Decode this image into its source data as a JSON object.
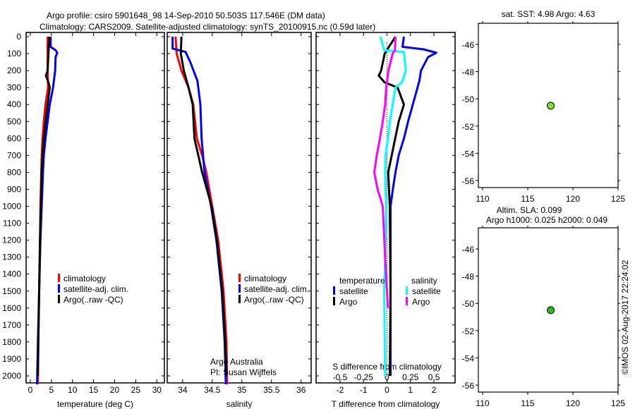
{
  "title": {
    "line1": "Argo profile: csiro 5901648_98 14-Sep-2010 50.503S 117.546E (DM data)",
    "line2": "Climatology: CARS2009. Satellite-adjusted climatology: synTS_20100915.nc (0.59d later)"
  },
  "depth_ticks": [
    0,
    100,
    200,
    300,
    400,
    500,
    600,
    700,
    800,
    900,
    1000,
    1100,
    1200,
    1300,
    1400,
    1500,
    1600,
    1700,
    1800,
    1900,
    2000
  ],
  "chart_data": [
    {
      "type": "line",
      "name": "temperature-profile",
      "xlabel": "temperature (deg C)",
      "ylabel": "depth",
      "xticks": [
        0,
        5,
        10,
        15,
        20,
        25,
        30
      ],
      "xlim": [
        -1,
        31.8
      ],
      "ylim": [
        2041,
        0
      ],
      "legend": [
        "climatology",
        "satellite-adj. clim.",
        "Argo(..raw -QC)"
      ],
      "series": [
        {
          "name": "climatology",
          "color": "#ff0000",
          "points": [
            [
              0,
              4.1
            ],
            [
              200,
              4.1
            ],
            [
              300,
              4.2
            ],
            [
              400,
              3.6
            ],
            [
              500,
              3.2
            ],
            [
              600,
              2.9
            ],
            [
              700,
              2.7
            ],
            [
              800,
              2.6
            ],
            [
              1000,
              2.4
            ],
            [
              1200,
              2.3
            ],
            [
              1500,
              2.1
            ],
            [
              1800,
              1.9
            ],
            [
              2050,
              1.8
            ]
          ]
        },
        {
          "name": "satellite-adj. clim.",
          "color": "#0000ff",
          "points": [
            [
              0,
              4.8
            ],
            [
              60,
              4.8
            ],
            [
              80,
              6.0
            ],
            [
              95,
              6.4
            ],
            [
              120,
              6.0
            ],
            [
              200,
              5.9
            ],
            [
              300,
              5.4
            ],
            [
              400,
              4.6
            ],
            [
              500,
              4.1
            ],
            [
              600,
              3.6
            ],
            [
              700,
              3.2
            ],
            [
              800,
              3.0
            ],
            [
              1000,
              2.7
            ],
            [
              1200,
              2.4
            ],
            [
              1500,
              2.1
            ],
            [
              1800,
              1.8
            ],
            [
              2050,
              1.6
            ]
          ]
        },
        {
          "name": "Argo(..raw -QC)",
          "color": "#000000",
          "points": [
            [
              0,
              4.5
            ],
            [
              100,
              4.3
            ],
            [
              200,
              4.1
            ],
            [
              230,
              3.7
            ],
            [
              270,
              4.3
            ],
            [
              300,
              4.6
            ],
            [
              400,
              4.1
            ],
            [
              500,
              3.6
            ],
            [
              600,
              3.2
            ],
            [
              700,
              2.9
            ],
            [
              800,
              2.7
            ],
            [
              1000,
              2.5
            ],
            [
              1200,
              2.3
            ],
            [
              1500,
              2.1
            ],
            [
              1800,
              1.9
            ],
            [
              2000,
              1.8
            ]
          ]
        }
      ]
    },
    {
      "type": "line",
      "name": "salinity-profile",
      "xlabel": "salinity",
      "ylabel": "depth",
      "xticks": [
        34,
        34.5,
        35,
        35.5,
        36
      ],
      "xtick_labels": [
        "34",
        "34.5",
        "35",
        "35.5",
        "36"
      ],
      "xlim": [
        33.74,
        36.17
      ],
      "ylim": [
        2041,
        0
      ],
      "legend": [
        "climatology",
        "satellite-adj. clim.",
        "Argo(..raw -QC)"
      ],
      "annotation": [
        "Argo Australia",
        "PI: Susan Wijffels"
      ],
      "series": [
        {
          "name": "climatology",
          "color": "#ff0000",
          "points": [
            [
              0,
              33.88
            ],
            [
              100,
              33.9
            ],
            [
              200,
              33.98
            ],
            [
              300,
              34.1
            ],
            [
              400,
              34.18
            ],
            [
              600,
              34.24
            ],
            [
              700,
              34.33
            ],
            [
              800,
              34.4
            ],
            [
              1000,
              34.5
            ],
            [
              1200,
              34.6
            ],
            [
              1500,
              34.69
            ],
            [
              1800,
              34.74
            ],
            [
              2050,
              34.75
            ]
          ]
        },
        {
          "name": "satellite-adj. clim.",
          "color": "#0000ff",
          "points": [
            [
              0,
              33.83
            ],
            [
              70,
              33.83
            ],
            [
              90,
              34.05
            ],
            [
              150,
              34.13
            ],
            [
              260,
              34.25
            ],
            [
              400,
              34.3
            ],
            [
              600,
              34.32
            ],
            [
              800,
              34.37
            ],
            [
              1000,
              34.48
            ],
            [
              1200,
              34.57
            ],
            [
              1500,
              34.66
            ],
            [
              1800,
              34.71
            ],
            [
              2050,
              34.73
            ]
          ]
        },
        {
          "name": "Argo(..raw -QC)",
          "color": "#000000",
          "points": [
            [
              0,
              33.98
            ],
            [
              100,
              33.97
            ],
            [
              200,
              34.02
            ],
            [
              300,
              34.1
            ],
            [
              400,
              34.17
            ],
            [
              600,
              34.2
            ],
            [
              800,
              34.33
            ],
            [
              1000,
              34.49
            ],
            [
              1200,
              34.58
            ],
            [
              1500,
              34.67
            ],
            [
              1800,
              34.72
            ],
            [
              2000,
              34.74
            ]
          ]
        }
      ]
    },
    {
      "type": "line",
      "name": "difference-profile",
      "xlabel": "T difference from climatology",
      "x2label": "S difference from climatology",
      "xticks": [
        -2,
        -1,
        0,
        1,
        2
      ],
      "x2ticks": [
        -0.5,
        -0.25,
        0,
        0.25,
        0.5
      ],
      "x2tick_labels": [
        "-0.5",
        "-0.25",
        "0",
        "0.25",
        "0.5"
      ],
      "xlim": [
        -3.02,
        2.9
      ],
      "ylim": [
        2041,
        0
      ],
      "legend_titles": [
        "temperature",
        "salinity"
      ],
      "series": [
        {
          "name": "satellite",
          "group": "temperature",
          "axis": "T",
          "color": "#0000ff",
          "points": [
            [
              0,
              0.72
            ],
            [
              60,
              0.66
            ],
            [
              75,
              1.56
            ],
            [
              95,
              2.1
            ],
            [
              120,
              1.75
            ],
            [
              200,
              1.45
            ],
            [
              260,
              1.38
            ],
            [
              300,
              1.3
            ],
            [
              400,
              1.1
            ],
            [
              500,
              0.9
            ],
            [
              600,
              0.72
            ],
            [
              700,
              0.5
            ],
            [
              800,
              0.36
            ],
            [
              900,
              0.25
            ],
            [
              1000,
              0.15
            ],
            [
              1500,
              0.15
            ],
            [
              2000,
              0.15
            ]
          ]
        },
        {
          "name": "Argo",
          "group": "temperature",
          "axis": "T",
          "color": "#000000",
          "points": [
            [
              0,
              0.36
            ],
            [
              100,
              -0.1
            ],
            [
              200,
              -0.25
            ],
            [
              230,
              -0.35
            ],
            [
              270,
              -0.1
            ],
            [
              300,
              0.45
            ],
            [
              400,
              0.72
            ],
            [
              500,
              0.5
            ],
            [
              600,
              0.35
            ],
            [
              700,
              0.2
            ],
            [
              800,
              0.05
            ],
            [
              1000,
              0.12
            ],
            [
              1500,
              0.15
            ],
            [
              2000,
              0.12
            ]
          ]
        },
        {
          "name": "satellite",
          "group": "salinity",
          "axis": "S",
          "color": "#00ffff",
          "points": [
            [
              0,
              -0.07
            ],
            [
              80,
              -0.03
            ],
            [
              90,
              0.18
            ],
            [
              200,
              0.2
            ],
            [
              270,
              0.16
            ],
            [
              300,
              0.09
            ],
            [
              400,
              0.06
            ],
            [
              500,
              0.03
            ],
            [
              600,
              0.01
            ],
            [
              700,
              -0.015
            ],
            [
              800,
              -0.02
            ],
            [
              1000,
              -0.01
            ],
            [
              1200,
              -0.015
            ],
            [
              1500,
              -0.03
            ],
            [
              2000,
              -0.02
            ]
          ]
        },
        {
          "name": "Argo",
          "group": "salinity",
          "axis": "S",
          "color": "#ff00ff",
          "points": [
            [
              0,
              0.09
            ],
            [
              80,
              0.085
            ],
            [
              100,
              0.06
            ],
            [
              200,
              0.015
            ],
            [
              300,
              -0.008
            ],
            [
              400,
              -0.02
            ],
            [
              500,
              -0.045
            ],
            [
              600,
              -0.075
            ],
            [
              700,
              -0.11
            ],
            [
              800,
              -0.135
            ],
            [
              900,
              -0.1
            ],
            [
              1000,
              -0.045
            ],
            [
              1300,
              -0.02
            ],
            [
              1500,
              0.0
            ],
            [
              1600,
              0.01
            ]
          ]
        }
      ]
    }
  ],
  "maps": [
    {
      "name": "sst-map",
      "title": "sat. SST: 4.98 Argo: 4.63",
      "lon_ticks": [
        110,
        115,
        120,
        125
      ],
      "lat_ticks": [
        -46,
        -48,
        -50,
        -52,
        -54,
        -56
      ],
      "argo_lon": 117.546,
      "argo_lat": -50.503,
      "marker_color": "#80e020"
    },
    {
      "name": "sla-map",
      "title": "Altim. SLA: 0.099",
      "subtitle": "Argo h1000: 0.025 h2000: 0.049",
      "lon_ticks": [
        110,
        115,
        120,
        125
      ],
      "lat_ticks": [
        -46,
        -48,
        -50,
        -52,
        -54,
        -56
      ],
      "argo_lon": 117.546,
      "argo_lat": -50.503,
      "marker_color": "#20c020"
    }
  ],
  "credit": "©IMOS 02-Aug-2017 22:24:02"
}
